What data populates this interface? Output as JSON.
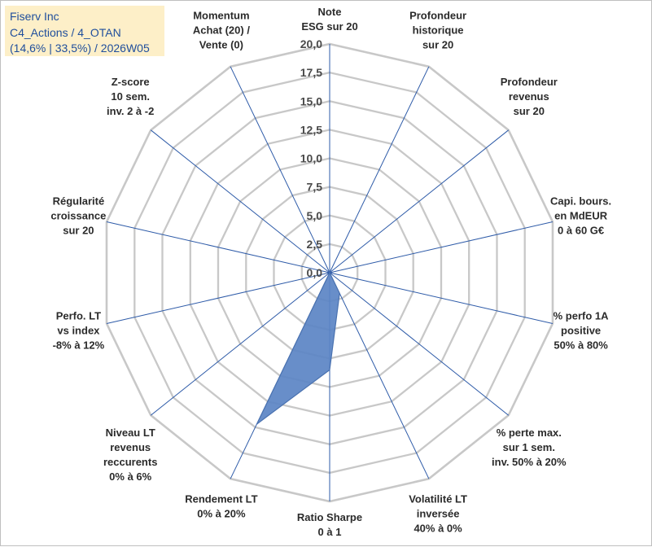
{
  "info": {
    "line1": "Fiserv Inc",
    "line2": "C4_Actions / 4_OTAN",
    "line3": "(14,6% | 33,5%) / 2026W05"
  },
  "chart_data": {
    "type": "radar",
    "title": "",
    "rlim": [
      0,
      20
    ],
    "ticks": [
      "0,0",
      "2,5",
      "5,0",
      "7,5",
      "10,0",
      "12,5",
      "15,0",
      "17,5",
      "20,0"
    ],
    "axes": [
      [
        "Note",
        "ESG sur 20"
      ],
      [
        "Profondeur",
        "historique",
        "sur 20"
      ],
      [
        "Profondeur",
        "revenus",
        "sur 20"
      ],
      [
        "Capi. bours.",
        "en MdEUR",
        "0 à 60 G€"
      ],
      [
        "% perfo 1A",
        "positive",
        "50% à 80%"
      ],
      [
        "% perte max.",
        "sur 1 sem.",
        "inv. 50% à 20%"
      ],
      [
        "Volatilité LT",
        "inversée",
        "40% à 0%"
      ],
      [
        "Ratio Sharpe",
        "0 à 1"
      ],
      [
        "Rendement LT",
        "0% à 20%"
      ],
      [
        "Niveau LT",
        "revenus",
        "reccurents",
        "0% à 6%"
      ],
      [
        "Perfo. LT",
        "vs index",
        "-8% à 12%"
      ],
      [
        "Régularité",
        "croissance",
        "sur 20"
      ],
      [
        "Z-score",
        "10 sem.",
        "inv. 2 à -2"
      ],
      [
        "Momentum",
        "Achat (20) /",
        "Vente (0)"
      ]
    ],
    "series": [
      {
        "name": "Fiserv Inc",
        "values": [
          0.3,
          0,
          0,
          0,
          0,
          0,
          2.0,
          8.5,
          14.7,
          0,
          0,
          0,
          0,
          0
        ]
      }
    ],
    "colors": {
      "fill": "#5b84c4",
      "stroke": "#4a72b0",
      "spokes": "#2e5ba8",
      "grid": "#c8c8c8"
    }
  }
}
